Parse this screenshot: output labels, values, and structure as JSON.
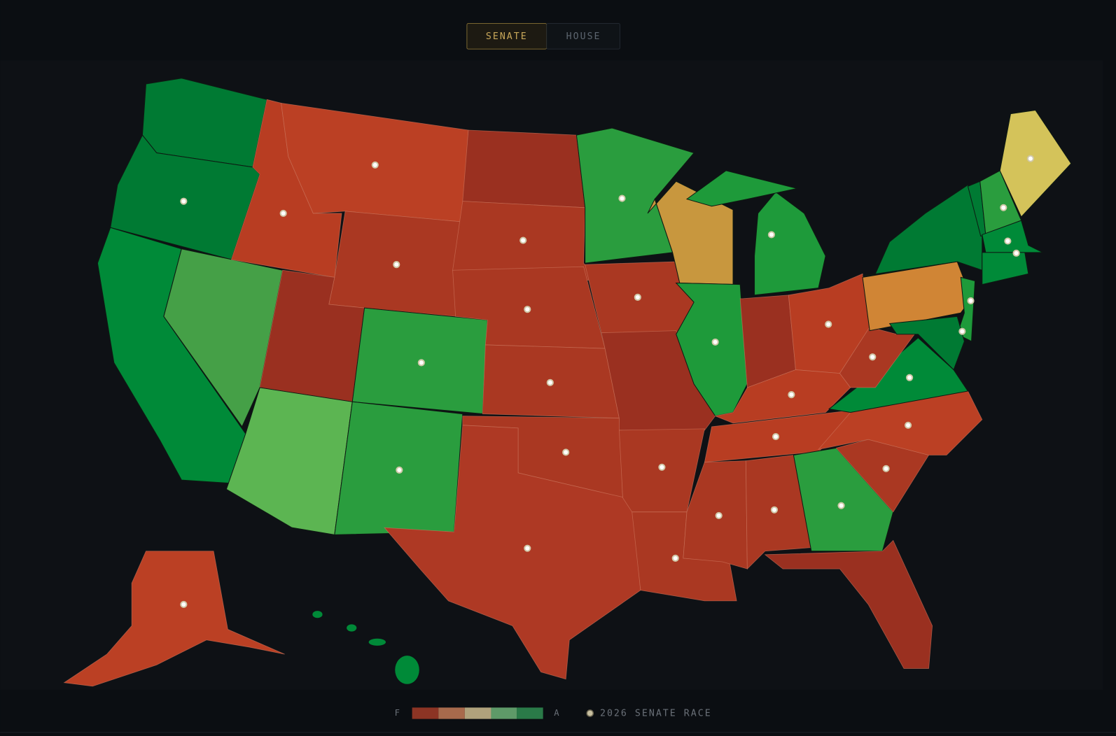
{
  "tabs": [
    {
      "label": "SENATE",
      "active": true
    },
    {
      "label": "HOUSE",
      "active": false
    }
  ],
  "legend": {
    "low": "F",
    "high": "A",
    "race": "2026 SENATE RACE"
  }
}
